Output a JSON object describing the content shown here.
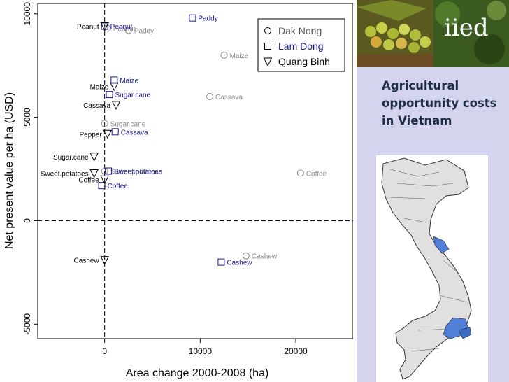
{
  "chart_data": {
    "type": "scatter",
    "title": "",
    "xlabel": "Area change 2000-2008 (ha)",
    "ylabel": "Net present value per ha (USD)",
    "xlim": [
      -7000,
      26000
    ],
    "ylim": [
      -5700,
      10500
    ],
    "xticks": [
      0,
      10000,
      20000
    ],
    "yticks": [
      -5000,
      0,
      5000,
      10000
    ],
    "reference_lines": {
      "x": 0,
      "y": 0,
      "style": "dashed"
    },
    "legend_position": "top-right",
    "series": [
      {
        "name": "Dak Nong",
        "marker": "circle",
        "color": "#888888",
        "points": [
          {
            "label": "Peanut",
            "x": 300,
            "y": 9300
          },
          {
            "label": "Paddy",
            "x": 2500,
            "y": 9200
          },
          {
            "label": "Maize",
            "x": 12500,
            "y": 8000
          },
          {
            "label": "Cassava",
            "x": 11000,
            "y": 6000
          },
          {
            "label": "Sugar.cane",
            "x": 0,
            "y": 4700
          },
          {
            "label": "Coffee",
            "x": 20500,
            "y": 2300
          },
          {
            "label": "Sweet.potatoes",
            "x": 0,
            "y": 2400
          },
          {
            "label": "Cashew",
            "x": 14800,
            "y": -1700
          }
        ]
      },
      {
        "name": "Lam Dong",
        "marker": "square",
        "color": "#1a1a9a",
        "points": [
          {
            "label": "Paddy",
            "x": 9200,
            "y": 9800
          },
          {
            "label": "Peanut",
            "x": 0,
            "y": 9400
          },
          {
            "label": "Maize",
            "x": 1000,
            "y": 6800
          },
          {
            "label": "Sugar.cane",
            "x": 500,
            "y": 6100
          },
          {
            "label": "Cassava",
            "x": 1100,
            "y": 4300
          },
          {
            "label": "Sweet.potatoes",
            "x": 400,
            "y": 2400
          },
          {
            "label": "Coffee",
            "x": -300,
            "y": 1700
          },
          {
            "label": "Cashew",
            "x": 12200,
            "y": -2000
          }
        ]
      },
      {
        "name": "Quang Binh",
        "marker": "triangle-down",
        "color": "#000000",
        "points": [
          {
            "label": "Peanut",
            "x": 0,
            "y": 9400
          },
          {
            "label": "Maize",
            "x": 1000,
            "y": 6500
          },
          {
            "label": "Cassava",
            "x": 1200,
            "y": 5600
          },
          {
            "label": "Pepper",
            "x": 300,
            "y": 4200
          },
          {
            "label": "Sugar.cane",
            "x": -1100,
            "y": 3100
          },
          {
            "label": "Sweet.potatoes",
            "x": -1100,
            "y": 2300
          },
          {
            "label": "Coffee",
            "x": 0,
            "y": 2000
          },
          {
            "label": "Cashew",
            "x": 0,
            "y": -1900
          }
        ]
      }
    ]
  },
  "panel": {
    "logo_text": "iied",
    "title": "Agricultural\nopportunity costs\nin  Vietnam"
  },
  "colors": {
    "panel_bg": "#d4d4ee",
    "title_text": "#1e2e48",
    "map_fill": "#e0e0e0",
    "map_highlight": "#4f7fd6"
  }
}
